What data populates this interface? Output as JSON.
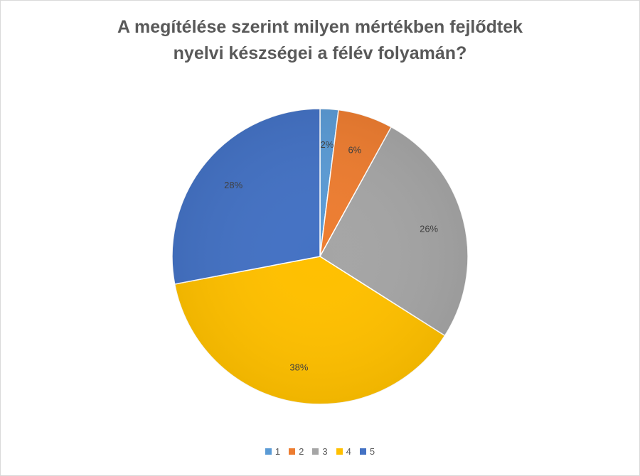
{
  "chart_data": {
    "type": "pie",
    "title_lines": [
      "A megítélése szerint milyen mértékben fejlődtek",
      "nyelvi készségei a félév folyamán?"
    ],
    "categories": [
      "1",
      "2",
      "3",
      "4",
      "5"
    ],
    "values": [
      2,
      6,
      26,
      38,
      28
    ],
    "value_labels": [
      "2%",
      "6%",
      "26%",
      "38%",
      "28%"
    ],
    "colors": [
      "#5b9bd5",
      "#ed7d31",
      "#a5a5a5",
      "#ffc000",
      "#4472c4"
    ],
    "legend_position": "bottom",
    "start_angle": "top, clockwise"
  }
}
